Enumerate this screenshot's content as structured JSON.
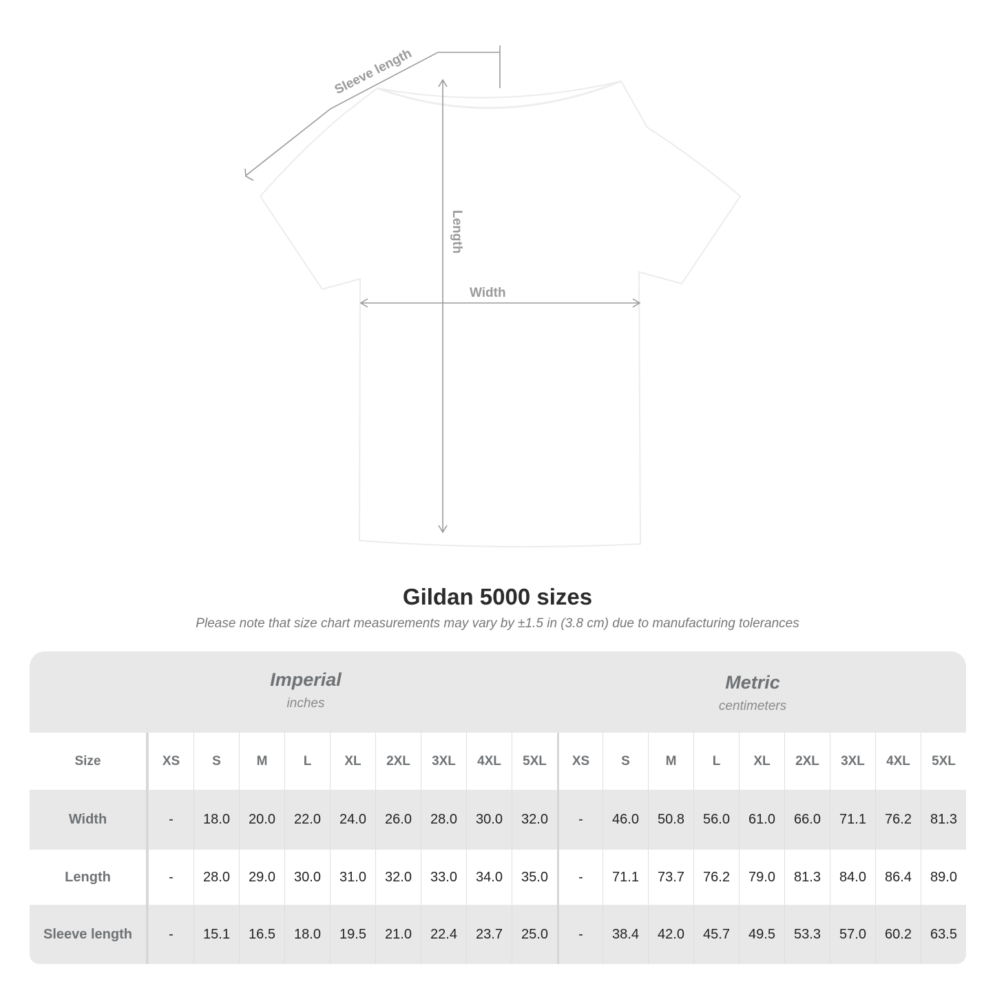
{
  "diagram": {
    "labels": {
      "sleeve": "Sleeve length",
      "length": "Length",
      "width": "Width"
    },
    "line_color": "#9a9a9a"
  },
  "title": "Gildan 5000 sizes",
  "note": "Please note that size chart measurements may vary by ±1.5 in (3.8 cm) due to manufacturing tolerances",
  "table": {
    "imperial": {
      "name": "Imperial",
      "unit": "inches"
    },
    "metric": {
      "name": "Metric",
      "unit": "centimeters"
    },
    "size_label": "Size",
    "sizes": [
      "XS",
      "S",
      "M",
      "L",
      "XL",
      "2XL",
      "3XL",
      "4XL",
      "5XL"
    ],
    "rows": [
      {
        "label": "Width",
        "imperial": [
          "-",
          "18.0",
          "20.0",
          "22.0",
          "24.0",
          "26.0",
          "28.0",
          "30.0",
          "32.0"
        ],
        "metric": [
          "-",
          "46.0",
          "50.8",
          "56.0",
          "61.0",
          "66.0",
          "71.1",
          "76.2",
          "81.3"
        ]
      },
      {
        "label": "Length",
        "imperial": [
          "-",
          "28.0",
          "29.0",
          "30.0",
          "31.0",
          "32.0",
          "33.0",
          "34.0",
          "35.0"
        ],
        "metric": [
          "-",
          "71.1",
          "73.7",
          "76.2",
          "79.0",
          "81.3",
          "84.0",
          "86.4",
          "89.0"
        ]
      },
      {
        "label": "Sleeve length",
        "imperial": [
          "-",
          "15.1",
          "16.5",
          "18.0",
          "19.5",
          "21.0",
          "22.4",
          "23.7",
          "25.0"
        ],
        "metric": [
          "-",
          "38.4",
          "42.0",
          "45.7",
          "49.5",
          "53.3",
          "57.0",
          "60.2",
          "63.5"
        ]
      }
    ]
  }
}
